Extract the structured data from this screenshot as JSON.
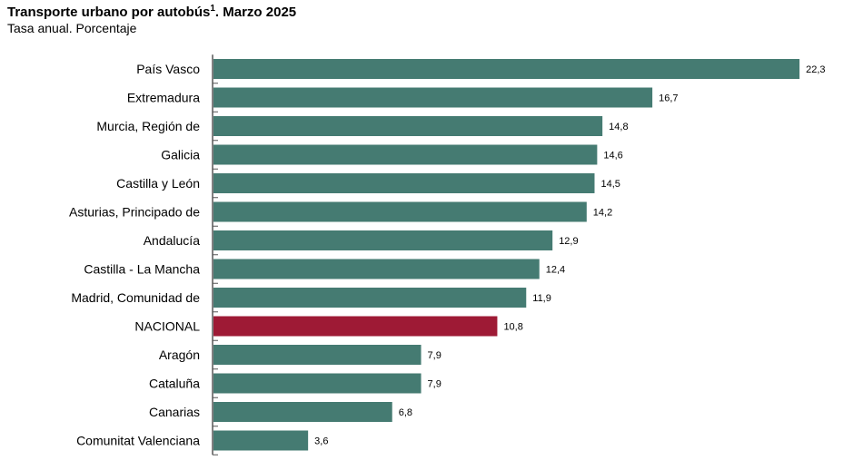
{
  "chart_data": {
    "type": "bar",
    "orientation": "horizontal",
    "title": "Transporte urbano por autobús",
    "title_footnote": "1",
    "title_suffix": ". Marzo 2025",
    "subtitle": "Tasa anual. Porcentaje",
    "categories": [
      "País Vasco",
      "Extremadura",
      "Murcia, Región de",
      "Galicia",
      "Castilla y León",
      "Asturias, Principado de",
      "Andalucía",
      "Castilla - La Mancha",
      "Madrid, Comunidad de",
      "NACIONAL",
      "Aragón",
      "Cataluña",
      "Canarias",
      "Comunitat Valenciana"
    ],
    "values": [
      22.3,
      16.7,
      14.8,
      14.6,
      14.5,
      14.2,
      12.9,
      12.4,
      11.9,
      10.8,
      7.9,
      7.9,
      6.8,
      3.6
    ],
    "value_labels": [
      "22,3",
      "16,7",
      "14,8",
      "14,6",
      "14,5",
      "14,2",
      "12,9",
      "12,4",
      "11,9",
      "10,8",
      "7,9",
      "7,9",
      "6,8",
      "3,6"
    ],
    "highlight": "NACIONAL",
    "colors": {
      "bar": "#457b72",
      "highlight": "#9e1a35",
      "axis": "#000000"
    },
    "xlim": [
      0,
      23.6
    ],
    "grid": false,
    "legend": "none"
  }
}
